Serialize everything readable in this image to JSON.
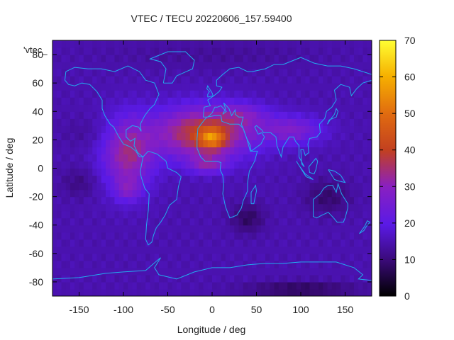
{
  "chart_data": {
    "type": "heatmap",
    "title": "VTEC / TECU 20220606_157.59400",
    "xlabel": "Longitude / deg",
    "ylabel": "Latitude / deg",
    "xlim": [
      -180,
      180
    ],
    "ylim": [
      -90,
      90
    ],
    "x_ticks": [
      -150,
      -100,
      -50,
      0,
      50,
      100,
      150
    ],
    "y_ticks": [
      -80,
      -60,
      -40,
      -20,
      0,
      20,
      40,
      60,
      80
    ],
    "x_tick_labels": [
      "-150",
      "-100",
      "-50",
      "0",
      "50",
      "100",
      "150"
    ],
    "y_tick_labels": [
      "-80",
      "-60",
      "-40",
      "-20",
      "0",
      "20",
      "40",
      "60",
      "80"
    ],
    "colorbar": {
      "range": [
        0,
        70
      ],
      "ticks": [
        0,
        10,
        20,
        30,
        40,
        50,
        60,
        70
      ],
      "tick_labels": [
        "0",
        "10",
        "20",
        "30",
        "40",
        "50",
        "60",
        "70"
      ]
    },
    "legend_key": "'vtec_",
    "overlay": "coastlines",
    "background_value": 15,
    "features": [
      {
        "lon": -10,
        "lat": 25,
        "sx": 55,
        "sy": 18,
        "amp": 25
      },
      {
        "lon": 0,
        "lat": 21,
        "sx": 14,
        "sy": 7,
        "amp": 20
      },
      {
        "lon": -5,
        "lat": 3,
        "sx": 20,
        "sy": 6,
        "amp": 12
      },
      {
        "lon": -95,
        "lat": 10,
        "sx": 28,
        "sy": 25,
        "amp": 18
      },
      {
        "lon": -95,
        "lat": -15,
        "sx": 14,
        "sy": 8,
        "amp": 8
      },
      {
        "lon": 90,
        "lat": 27,
        "sx": 35,
        "sy": 10,
        "amp": 12
      },
      {
        "lon": 35,
        "lat": 38,
        "sx": 28,
        "sy": 8,
        "amp": 8
      },
      {
        "lon": 40,
        "lat": -35,
        "sx": 18,
        "sy": 10,
        "amp": -7
      },
      {
        "lon": 130,
        "lat": -20,
        "sx": 25,
        "sy": 12,
        "amp": -6
      },
      {
        "lon": -140,
        "lat": 25,
        "sx": 30,
        "sy": 10,
        "amp": -2
      },
      {
        "lon": -150,
        "lat": -10,
        "sx": 20,
        "sy": 10,
        "amp": -4
      },
      {
        "lon": 100,
        "lat": -85,
        "sx": 60,
        "sy": 5,
        "amp": -8
      },
      {
        "lon": 0,
        "lat": 80,
        "sx": 120,
        "sy": 10,
        "amp": -2
      }
    ]
  }
}
